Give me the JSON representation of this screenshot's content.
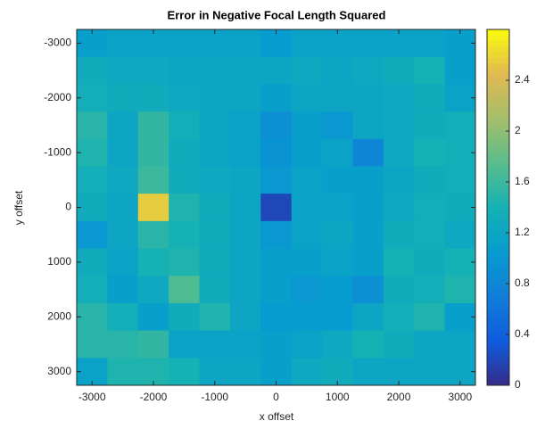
{
  "chart_data": {
    "type": "heatmap",
    "title": "Error in Negative Focal Length Squared",
    "x_label": "x offset",
    "y_label": "y offset",
    "x": [
      -3000,
      -2500,
      -2000,
      -1500,
      -1000,
      -500,
      0,
      500,
      1000,
      1500,
      2000,
      2500,
      3000
    ],
    "y": [
      -3000,
      -2500,
      -2000,
      -1500,
      -1000,
      -500,
      0,
      500,
      1000,
      1500,
      2000,
      2500,
      3000
    ],
    "values": [
      [
        1.1,
        1.15,
        1.15,
        1.15,
        1.15,
        1.15,
        1.05,
        1.15,
        1.15,
        1.15,
        1.15,
        1.15,
        1.1
      ],
      [
        1.3,
        1.25,
        1.25,
        1.2,
        1.2,
        1.2,
        1.2,
        1.25,
        1.2,
        1.25,
        1.3,
        1.4,
        1.1
      ],
      [
        1.35,
        1.3,
        1.3,
        1.25,
        1.2,
        1.2,
        1.1,
        1.2,
        1.2,
        1.2,
        1.25,
        1.3,
        1.15
      ],
      [
        1.5,
        1.2,
        1.55,
        1.35,
        1.2,
        1.15,
        0.9,
        1.1,
        1.0,
        1.2,
        1.25,
        1.3,
        1.35
      ],
      [
        1.45,
        1.2,
        1.55,
        1.3,
        1.2,
        1.15,
        0.95,
        1.1,
        1.15,
        0.8,
        1.25,
        1.4,
        1.35
      ],
      [
        1.35,
        1.25,
        1.6,
        1.3,
        1.25,
        1.2,
        1.0,
        1.15,
        1.1,
        1.1,
        1.2,
        1.3,
        1.35
      ],
      [
        1.3,
        1.2,
        2.55,
        1.45,
        1.3,
        1.2,
        0.2,
        1.15,
        1.15,
        1.1,
        1.25,
        1.35,
        1.3
      ],
      [
        1.0,
        1.2,
        1.5,
        1.4,
        1.3,
        1.2,
        1.0,
        1.15,
        1.2,
        1.1,
        1.3,
        1.35,
        1.25
      ],
      [
        1.3,
        1.15,
        1.4,
        1.45,
        1.3,
        1.2,
        1.1,
        1.1,
        1.15,
        1.1,
        1.4,
        1.3,
        1.4
      ],
      [
        1.35,
        1.1,
        1.25,
        1.7,
        1.3,
        1.2,
        1.1,
        1.0,
        1.05,
        0.9,
        1.3,
        1.35,
        1.45
      ],
      [
        1.5,
        1.35,
        1.1,
        1.3,
        1.45,
        1.2,
        1.05,
        1.05,
        1.05,
        1.2,
        1.35,
        1.45,
        1.1
      ],
      [
        1.5,
        1.5,
        1.55,
        1.15,
        1.15,
        1.15,
        1.1,
        1.15,
        1.25,
        1.4,
        1.3,
        1.2,
        1.2
      ],
      [
        1.15,
        1.45,
        1.45,
        1.4,
        1.2,
        1.2,
        1.1,
        1.25,
        1.3,
        1.2,
        1.2,
        1.2,
        1.2
      ]
    ],
    "xlim": [
      -3250,
      3250
    ],
    "ylim": [
      -3250,
      3250
    ],
    "y_reversed": true,
    "xticks": [
      -3000,
      -2000,
      -1000,
      0,
      1000,
      2000,
      3000
    ],
    "yticks": [
      -3000,
      -2000,
      -1000,
      0,
      1000,
      2000,
      3000
    ],
    "colormap": "parula",
    "clim": [
      0,
      2.8
    ],
    "colorbar_ticks": [
      0,
      0.4,
      0.8,
      1.2,
      1.6,
      2,
      2.4
    ]
  }
}
